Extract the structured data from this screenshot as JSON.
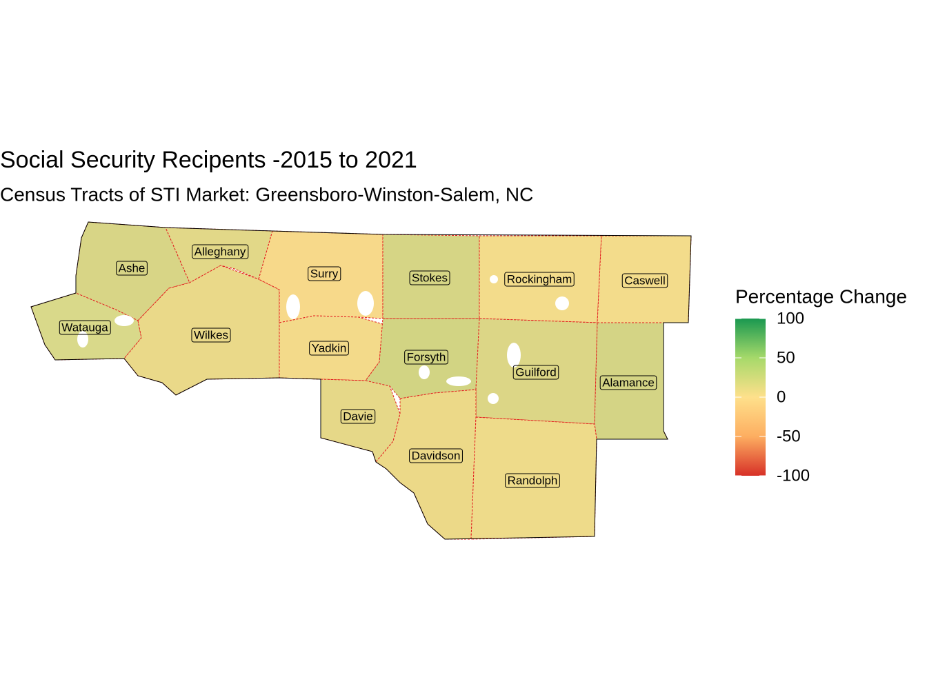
{
  "title": "Social Security Recipents -2015 to 2021",
  "subtitle": "Census Tracts of STI Market: Greensboro-Winston-Salem, NC",
  "counties": [
    "Ashe",
    "Alleghany",
    "Watauga",
    "Wilkes",
    "Surry",
    "Yadkin",
    "Stokes",
    "Rockingham",
    "Caswell",
    "Forsyth",
    "Guilford",
    "Alamance",
    "Davie",
    "Davidson",
    "Randolph"
  ],
  "legend": {
    "title": "Percentage Change",
    "lim": [
      -100,
      100
    ],
    "ticks": [
      100,
      50,
      0,
      -50,
      -100
    ],
    "colors": [
      "#d73027",
      "#fdae61",
      "#fee08b",
      "#a6d96a",
      "#1a9850"
    ]
  }
}
